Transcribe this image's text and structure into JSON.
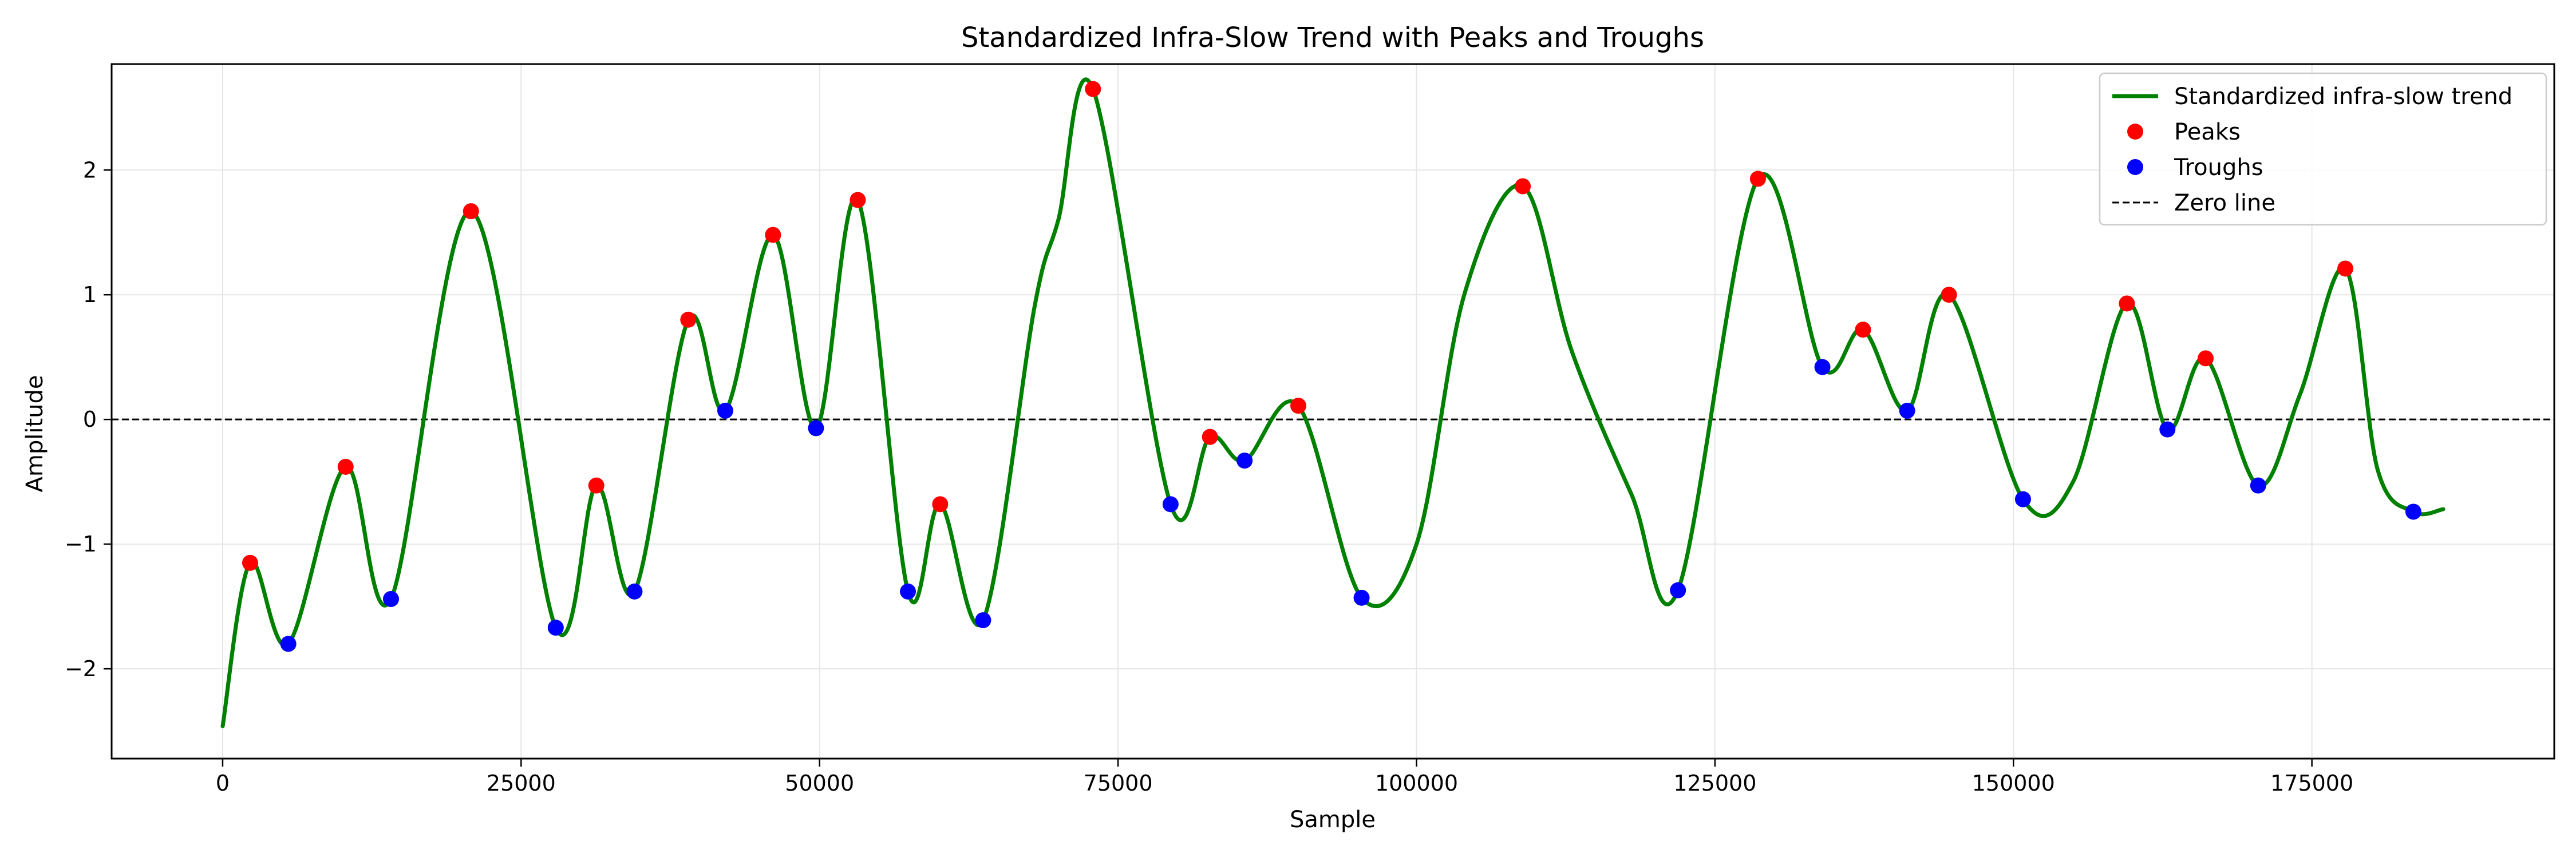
{
  "chart_data": {
    "type": "line",
    "title": "Standardized Infra-Slow Trend with Peaks and Troughs",
    "xlabel": "Sample",
    "ylabel": "Amplitude",
    "xlim": [
      -9300,
      195300
    ],
    "ylim": [
      -2.72,
      2.85
    ],
    "xticks": [
      0,
      25000,
      50000,
      75000,
      100000,
      125000,
      150000,
      175000
    ],
    "yticks": [
      -2,
      -1,
      0,
      1,
      2
    ],
    "grid": true,
    "legend_position": "top-right",
    "colors": {
      "trend": "#008000",
      "peaks": "#ff0000",
      "troughs": "#0000ff",
      "zero_line": "#000000",
      "grid": "#e6e6e6"
    },
    "legend": [
      {
        "key": "trend",
        "label": "Standardized infra-slow trend"
      },
      {
        "key": "peaks",
        "label": "Peaks"
      },
      {
        "key": "troughs",
        "label": "Troughs"
      },
      {
        "key": "zero",
        "label": "Zero line"
      }
    ],
    "series": [
      {
        "name": "Standardized infra-slow trend",
        "kind": "line",
        "points": [
          [
            0,
            -2.46
          ],
          [
            2300,
            -1.15
          ],
          [
            5500,
            -1.8
          ],
          [
            10300,
            -0.38
          ],
          [
            14100,
            -1.44
          ],
          [
            20800,
            1.67
          ],
          [
            27900,
            -1.67
          ],
          [
            31300,
            -0.53
          ],
          [
            34500,
            -1.38
          ],
          [
            39000,
            0.8
          ],
          [
            42100,
            0.07
          ],
          [
            46100,
            1.48
          ],
          [
            49700,
            -0.07
          ],
          [
            53200,
            1.76
          ],
          [
            57400,
            -1.38
          ],
          [
            60100,
            -0.68
          ],
          [
            63700,
            -1.61
          ],
          [
            68000,
            0.9
          ],
          [
            70000,
            1.6
          ],
          [
            72900,
            2.65
          ],
          [
            79400,
            -0.68
          ],
          [
            82700,
            -0.14
          ],
          [
            85600,
            -0.33
          ],
          [
            90100,
            0.11
          ],
          [
            95400,
            -1.43
          ],
          [
            100000,
            -1.0
          ],
          [
            104000,
            1.0
          ],
          [
            108900,
            1.87
          ],
          [
            113000,
            0.55
          ],
          [
            118000,
            -0.6
          ],
          [
            121900,
            -1.37
          ],
          [
            128600,
            1.93
          ],
          [
            134000,
            0.42
          ],
          [
            137400,
            0.72
          ],
          [
            141100,
            0.07
          ],
          [
            144600,
            1.0
          ],
          [
            150800,
            -0.64
          ],
          [
            155000,
            -0.5
          ],
          [
            159500,
            0.93
          ],
          [
            162900,
            -0.08
          ],
          [
            166100,
            0.49
          ],
          [
            170500,
            -0.53
          ],
          [
            174000,
            0.2
          ],
          [
            177800,
            1.21
          ],
          [
            180500,
            -0.4
          ],
          [
            183500,
            -0.74
          ],
          [
            186000,
            -0.72
          ]
        ]
      },
      {
        "name": "Peaks",
        "kind": "scatter",
        "points": [
          [
            2300,
            -1.15
          ],
          [
            10300,
            -0.38
          ],
          [
            20800,
            1.67
          ],
          [
            31300,
            -0.53
          ],
          [
            39000,
            0.8
          ],
          [
            46100,
            1.48
          ],
          [
            53200,
            1.76
          ],
          [
            60100,
            -0.68
          ],
          [
            72900,
            2.65
          ],
          [
            82700,
            -0.14
          ],
          [
            90100,
            0.11
          ],
          [
            108900,
            1.87
          ],
          [
            128600,
            1.93
          ],
          [
            137400,
            0.72
          ],
          [
            144600,
            1.0
          ],
          [
            159500,
            0.93
          ],
          [
            166100,
            0.49
          ],
          [
            177800,
            1.21
          ]
        ]
      },
      {
        "name": "Troughs",
        "kind": "scatter",
        "points": [
          [
            5500,
            -1.8
          ],
          [
            14100,
            -1.44
          ],
          [
            27900,
            -1.67
          ],
          [
            34500,
            -1.38
          ],
          [
            42100,
            0.07
          ],
          [
            49700,
            -0.07
          ],
          [
            57400,
            -1.38
          ],
          [
            63700,
            -1.61
          ],
          [
            79400,
            -0.68
          ],
          [
            85600,
            -0.33
          ],
          [
            95400,
            -1.43
          ],
          [
            121900,
            -1.37
          ],
          [
            134000,
            0.42
          ],
          [
            141100,
            0.07
          ],
          [
            150800,
            -0.64
          ],
          [
            162900,
            -0.08
          ],
          [
            170500,
            -0.53
          ],
          [
            183500,
            -0.74
          ]
        ]
      },
      {
        "name": "Zero line",
        "kind": "hline",
        "y": 0
      }
    ]
  }
}
